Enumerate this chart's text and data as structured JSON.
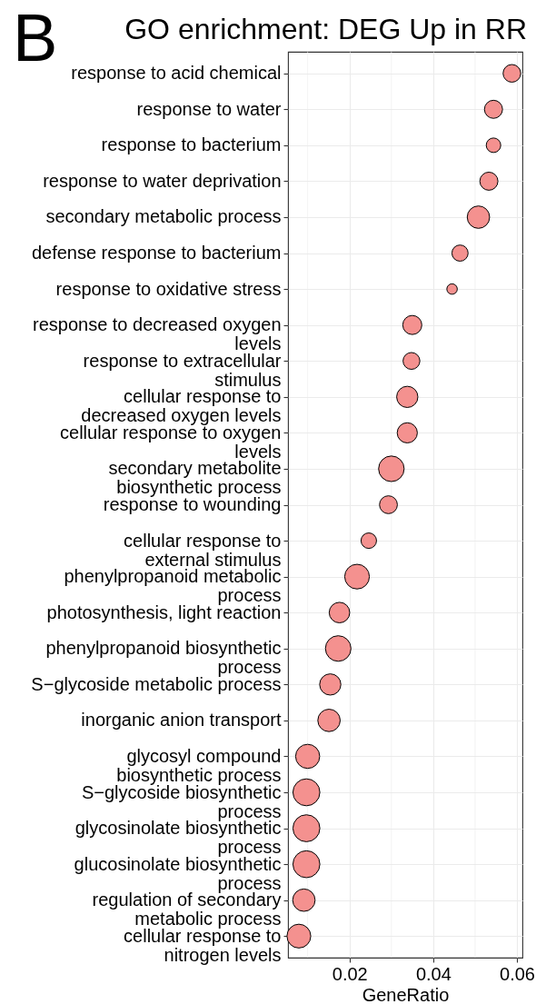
{
  "chart_data": {
    "type": "bubble",
    "orientation": "horizontal",
    "title": "GO enrichment: DEG Up in RR",
    "xlabel": "GeneRatio",
    "categories": [
      "response to acid chemical",
      "response to water",
      "response to bacterium",
      "response to water deprivation",
      "secondary metabolic process",
      "defense response to bacterium",
      "response to oxidative stress",
      "response to decreased oxygen\nlevels",
      "response to extracellular\nstimulus",
      "cellular response to\ndecreased oxygen levels",
      "cellular response to oxygen\nlevels",
      "secondary metabolite\nbiosynthetic process",
      "response to wounding",
      "cellular response to\nexternal stimulus",
      "phenylpropanoid metabolic\nprocess",
      "photosynthesis, light reaction",
      "phenylpropanoid biosynthetic\nprocess",
      "S−glycoside metabolic process",
      "inorganic anion transport",
      "glycosyl compound\nbiosynthetic process",
      "S−glycoside biosynthetic\nprocess",
      "glycosinolate biosynthetic\nprocess",
      "glucosinolate biosynthetic\nprocess",
      "regulation of secondary\nmetabolic process",
      "cellular response to\nnitrogen levels"
    ],
    "values": [
      0.0588,
      0.0544,
      0.0544,
      0.0533,
      0.0508,
      0.0464,
      0.0445,
      0.035,
      0.0348,
      0.0338,
      0.0338,
      0.03,
      0.0293,
      0.0246,
      0.0218,
      0.0176,
      0.0173,
      0.0154,
      0.0151,
      0.01,
      0.0097,
      0.0097,
      0.0097,
      0.0091,
      0.0079
    ],
    "sizes": [
      0.43,
      0.45,
      0.29,
      0.45,
      0.69,
      0.36,
      0.15,
      0.5,
      0.39,
      0.62,
      0.56,
      0.9,
      0.44,
      0.33,
      0.84,
      0.58,
      0.9,
      0.62,
      0.69,
      0.8,
      1,
      1,
      1,
      0.69,
      0.78
    ],
    "color": "#f4918f",
    "marker": "circle",
    "xlim": [
      0.0053,
      0.0613
    ],
    "xticks": [
      0.02,
      0.04,
      0.06
    ],
    "grid": true,
    "annotations": [
      "B"
    ]
  }
}
